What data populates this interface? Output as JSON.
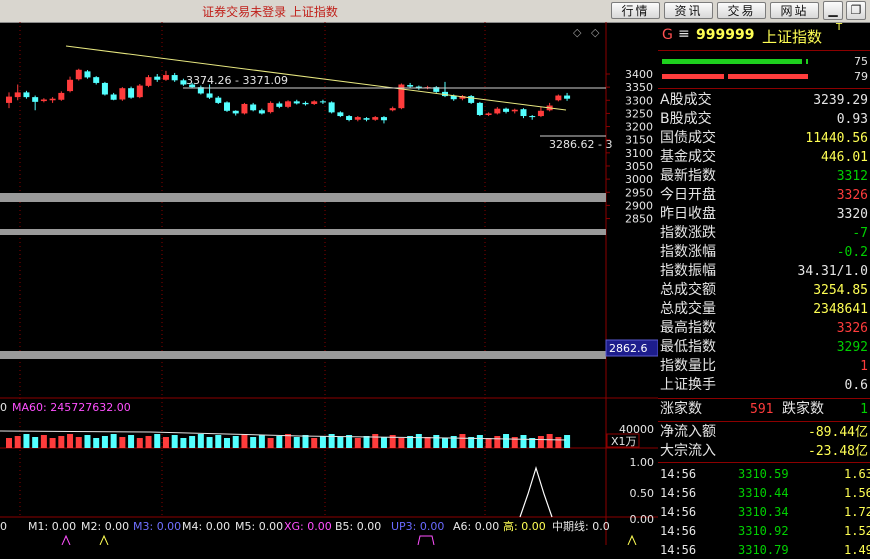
{
  "window": {
    "title": "证券交易未登录  上证指数",
    "buttons": [
      "行情",
      "资讯",
      "交易",
      "网站"
    ]
  },
  "colors": {
    "up": "#ff3c3c",
    "down": "#54ffff",
    "yellow": "#ffff54",
    "green": "#00d000",
    "grid": "#8c0000"
  },
  "main_chart": {
    "price_ticks": [
      "3400",
      "3350",
      "3300",
      "3250",
      "3200",
      "3150",
      "3100",
      "3050",
      "3000",
      "2950",
      "2900",
      "2850"
    ],
    "trend_labels": {
      "top": "3374.26 - 3371.09",
      "right": "3286.62 - 3"
    },
    "last_price_tag": "2862.6",
    "candles": [
      {
        "o": 3290,
        "c": 3314,
        "h": 3330,
        "l": 3270
      },
      {
        "o": 3312,
        "c": 3330,
        "h": 3360,
        "l": 3300
      },
      {
        "o": 3330,
        "c": 3312,
        "h": 3336,
        "l": 3306
      },
      {
        "o": 3312,
        "c": 3294,
        "h": 3318,
        "l": 3262
      },
      {
        "o": 3297,
        "c": 3303,
        "h": 3308,
        "l": 3292
      },
      {
        "o": 3300,
        "c": 3306,
        "h": 3312,
        "l": 3290
      },
      {
        "o": 3302,
        "c": 3328,
        "h": 3334,
        "l": 3298
      },
      {
        "o": 3335,
        "c": 3378,
        "h": 3390,
        "l": 3330
      },
      {
        "o": 3380,
        "c": 3416,
        "h": 3420,
        "l": 3375
      },
      {
        "o": 3410,
        "c": 3387,
        "h": 3415,
        "l": 3382
      },
      {
        "o": 3388,
        "c": 3366,
        "h": 3392,
        "l": 3360
      },
      {
        "o": 3366,
        "c": 3322,
        "h": 3370,
        "l": 3318
      },
      {
        "o": 3322,
        "c": 3302,
        "h": 3328,
        "l": 3300
      },
      {
        "o": 3303,
        "c": 3346,
        "h": 3350,
        "l": 3298
      },
      {
        "o": 3346,
        "c": 3310,
        "h": 3352,
        "l": 3306
      },
      {
        "o": 3312,
        "c": 3356,
        "h": 3362,
        "l": 3308
      },
      {
        "o": 3355,
        "c": 3388,
        "h": 3396,
        "l": 3350
      },
      {
        "o": 3390,
        "c": 3378,
        "h": 3400,
        "l": 3370
      },
      {
        "o": 3378,
        "c": 3396,
        "h": 3412,
        "l": 3374
      },
      {
        "o": 3396,
        "c": 3376,
        "h": 3404,
        "l": 3370
      },
      {
        "o": 3376,
        "c": 3360,
        "h": 3382,
        "l": 3355
      },
      {
        "o": 3360,
        "c": 3350,
        "h": 3366,
        "l": 3346
      },
      {
        "o": 3350,
        "c": 3326,
        "h": 3356,
        "l": 3322
      },
      {
        "o": 3326,
        "c": 3310,
        "h": 3360,
        "l": 3305
      },
      {
        "o": 3310,
        "c": 3290,
        "h": 3316,
        "l": 3286
      },
      {
        "o": 3292,
        "c": 3260,
        "h": 3296,
        "l": 3256
      },
      {
        "o": 3260,
        "c": 3250,
        "h": 3262,
        "l": 3242
      },
      {
        "o": 3250,
        "c": 3286,
        "h": 3290,
        "l": 3246
      },
      {
        "o": 3284,
        "c": 3262,
        "h": 3290,
        "l": 3258
      },
      {
        "o": 3262,
        "c": 3250,
        "h": 3268,
        "l": 3246
      },
      {
        "o": 3255,
        "c": 3290,
        "h": 3296,
        "l": 3250
      },
      {
        "o": 3288,
        "c": 3275,
        "h": 3295,
        "l": 3270
      },
      {
        "o": 3275,
        "c": 3296,
        "h": 3300,
        "l": 3270
      },
      {
        "o": 3296,
        "c": 3288,
        "h": 3302,
        "l": 3284
      },
      {
        "o": 3290,
        "c": 3285,
        "h": 3296,
        "l": 3280
      },
      {
        "o": 3286,
        "c": 3296,
        "h": 3300,
        "l": 3282
      },
      {
        "o": 3296,
        "c": 3292,
        "h": 3302,
        "l": 3286
      },
      {
        "o": 3292,
        "c": 3254,
        "h": 3296,
        "l": 3250
      },
      {
        "o": 3254,
        "c": 3240,
        "h": 3258,
        "l": 3236
      },
      {
        "o": 3240,
        "c": 3225,
        "h": 3244,
        "l": 3220
      },
      {
        "o": 3226,
        "c": 3236,
        "h": 3240,
        "l": 3220
      },
      {
        "o": 3232,
        "c": 3226,
        "h": 3236,
        "l": 3220
      },
      {
        "o": 3226,
        "c": 3236,
        "h": 3240,
        "l": 3222
      },
      {
        "o": 3236,
        "c": 3224,
        "h": 3240,
        "l": 3212
      },
      {
        "o": 3262,
        "c": 3270,
        "h": 3276,
        "l": 3258
      },
      {
        "o": 3270,
        "c": 3360,
        "h": 3364,
        "l": 3266
      },
      {
        "o": 3358,
        "c": 3352,
        "h": 3366,
        "l": 3348
      },
      {
        "o": 3352,
        "c": 3346,
        "h": 3356,
        "l": 3340
      },
      {
        "o": 3346,
        "c": 3350,
        "h": 3355,
        "l": 3342
      },
      {
        "o": 3350,
        "c": 3332,
        "h": 3354,
        "l": 3328
      },
      {
        "o": 3332,
        "c": 3316,
        "h": 3370,
        "l": 3312
      },
      {
        "o": 3318,
        "c": 3304,
        "h": 3322,
        "l": 3298
      },
      {
        "o": 3306,
        "c": 3316,
        "h": 3320,
        "l": 3300
      },
      {
        "o": 3316,
        "c": 3290,
        "h": 3320,
        "l": 3286
      },
      {
        "o": 3290,
        "c": 3244,
        "h": 3294,
        "l": 3240
      },
      {
        "o": 3244,
        "c": 3250,
        "h": 3254,
        "l": 3240
      },
      {
        "o": 3250,
        "c": 3268,
        "h": 3274,
        "l": 3246
      },
      {
        "o": 3268,
        "c": 3256,
        "h": 3272,
        "l": 3250
      },
      {
        "o": 3258,
        "c": 3264,
        "h": 3268,
        "l": 3250
      },
      {
        "o": 3266,
        "c": 3240,
        "h": 3270,
        "l": 3232
      },
      {
        "o": 3240,
        "c": 3236,
        "h": 3244,
        "l": 3226
      },
      {
        "o": 3240,
        "c": 3260,
        "h": 3276,
        "l": 3236
      },
      {
        "o": 3262,
        "c": 3280,
        "h": 3290,
        "l": 3258
      },
      {
        "o": 3300,
        "c": 3318,
        "h": 3322,
        "l": 3296
      },
      {
        "o": 3318,
        "c": 3306,
        "h": 3328,
        "l": 3298
      }
    ]
  },
  "volume_panel": {
    "label": "MA60: 245727632.00",
    "ticks": [
      "40000",
      "X1万"
    ],
    "ma_label_partial": "0"
  },
  "indicator_panel": {
    "ticks": [
      "1.00",
      "0.50",
      "0.00"
    ],
    "bottom_line": [
      {
        "t": "M1: 0.00",
        "c": "#e8e8e8"
      },
      {
        "t": "M2: 0.00",
        "c": "#e8e8e8"
      },
      {
        "t": "M3: 0.00",
        "c": "#7070ff"
      },
      {
        "t": "M4: 0.00",
        "c": "#e8e8e8"
      },
      {
        "t": "M5: 0.00",
        "c": "#e8e8e8"
      },
      {
        "t": "XG: 0.00",
        "c": "#ff50ff"
      },
      {
        "t": "B5: 0.00",
        "c": "#e8e8e8"
      },
      {
        "t": "UP3: 0.00",
        "c": "#6a6aff"
      },
      {
        "t": "A6: 0.00",
        "c": "#e8e8e8"
      },
      {
        "t": "高: 0.00",
        "c": "#ffff54"
      },
      {
        "t": "中期线: 0.0",
        "c": "#e8e8e8"
      }
    ],
    "left_value": "0"
  },
  "quote_panel": {
    "symbol_line": "G ≡ 999999 上证指数",
    "symbol_code": "999999",
    "symbol_name": "上证指数",
    "symbol_sup": "T",
    "bar_values": [
      "75",
      "79"
    ],
    "rows": [
      {
        "label": "A股成交",
        "value": "3239.29",
        "color": "#e5e5e5"
      },
      {
        "label": "B股成交",
        "value": "0.93",
        "color": "#e5e5e5"
      },
      {
        "label": "国债成交",
        "value": "11440.56",
        "color": "#ffff54"
      },
      {
        "label": "基金成交",
        "value": "446.01",
        "color": "#ffff54"
      },
      {
        "label": "最新指数",
        "value": "3312",
        "color": "#00d000"
      },
      {
        "label": "今日开盘",
        "value": "3326",
        "color": "#ff3c3c"
      },
      {
        "label": "昨日收盘",
        "value": "3320",
        "color": "#e5e5e5"
      },
      {
        "label": "指数涨跌",
        "value": "-7",
        "color": "#00d000"
      },
      {
        "label": "指数涨幅",
        "value": "-0.2",
        "color": "#00d000"
      },
      {
        "label": "指数振幅",
        "value": "34.31/1.0",
        "color": "#e5e5e5"
      },
      {
        "label": "总成交额",
        "value": "3254.85",
        "color": "#ffff54"
      },
      {
        "label": "总成交量",
        "value": "2348641",
        "color": "#ffff54"
      },
      {
        "label": "最高指数",
        "value": "3326",
        "color": "#ff3c3c"
      },
      {
        "label": "最低指数",
        "value": "3292",
        "color": "#00d000"
      },
      {
        "label": "指数量比",
        "value": "1",
        "color": "#ff3c3c"
      },
      {
        "label": "上证换手",
        "value": "0.6",
        "color": "#e5e5e5"
      }
    ],
    "adv_dec": {
      "up_label": "涨家数",
      "up_value": "591",
      "down_label": "跌家数",
      "down_value": "1"
    },
    "flows": [
      {
        "label": "净流入额",
        "value": "-89.44亿",
        "color": "#ffff54"
      },
      {
        "label": "大宗流入",
        "value": "-23.48亿",
        "color": "#ffff54"
      }
    ],
    "ticks": [
      {
        "time": "14:56",
        "price": "3310.59",
        "vol": "1.63"
      },
      {
        "time": "14:56",
        "price": "3310.44",
        "vol": "1.56"
      },
      {
        "time": "14:56",
        "price": "3310.34",
        "vol": "1.72"
      },
      {
        "time": "14:56",
        "price": "3310.92",
        "vol": "1.52"
      },
      {
        "time": "14:56",
        "price": "3310.79",
        "vol": "1.49"
      }
    ]
  }
}
